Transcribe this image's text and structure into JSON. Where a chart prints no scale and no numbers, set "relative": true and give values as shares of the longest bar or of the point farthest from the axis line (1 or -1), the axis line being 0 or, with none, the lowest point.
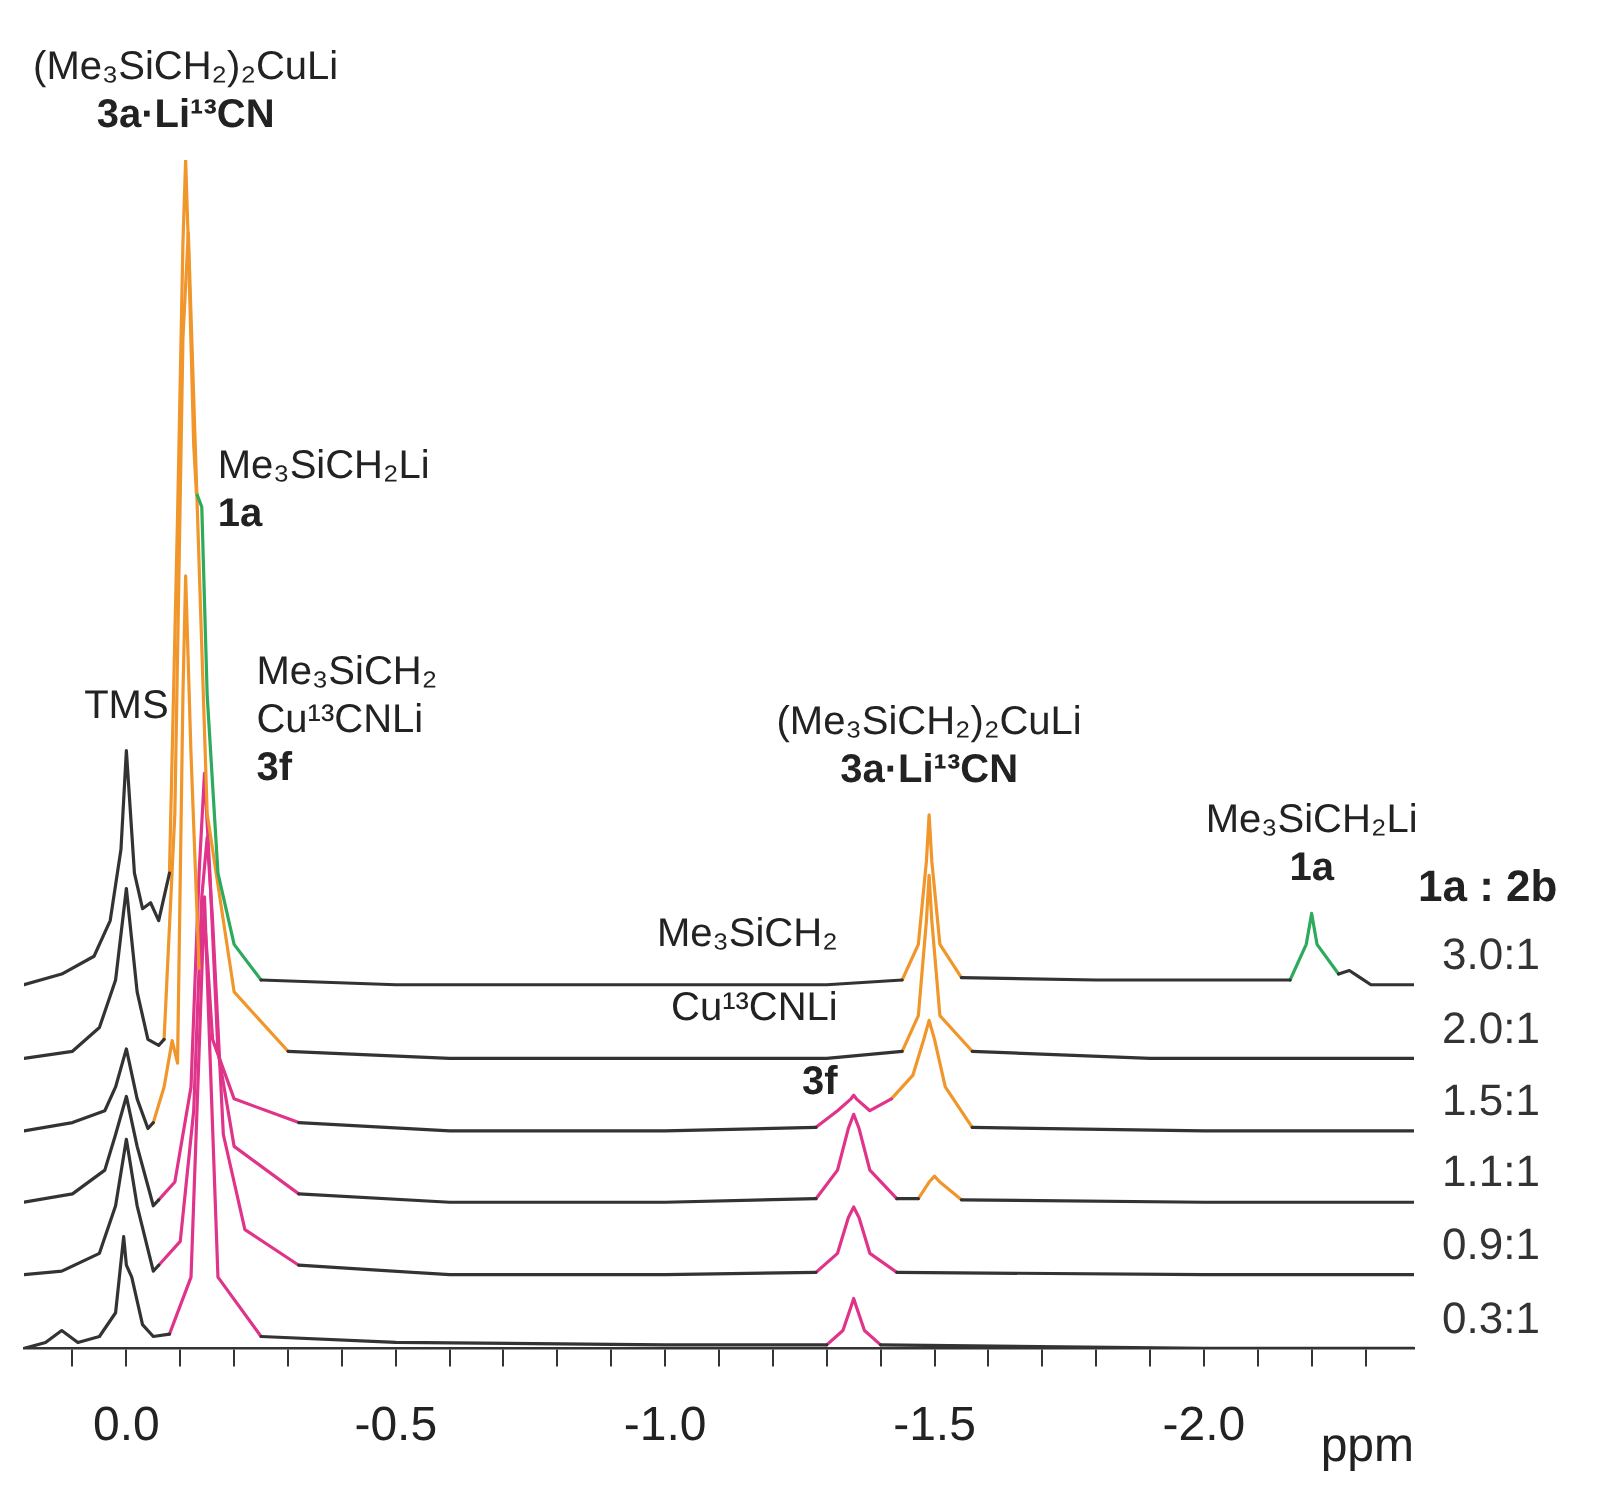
{
  "chart_data": {
    "type": "line",
    "xlabel": "ppm",
    "legend_title": "1a : 2b",
    "relative": true,
    "legend": false,
    "marker": "none",
    "line_style": "solid",
    "tick_labels": "x",
    "xlim": [
      0.19,
      -2.39
    ],
    "xticks": [
      {
        "value": 0.1,
        "label": null
      },
      {
        "value": 0,
        "label": "0.0"
      },
      {
        "value": -0.1,
        "label": null
      },
      {
        "value": -0.2,
        "label": null
      },
      {
        "value": -0.3,
        "label": null
      },
      {
        "value": -0.4,
        "label": null
      },
      {
        "value": -0.5,
        "label": "-0.5"
      },
      {
        "value": -0.6,
        "label": null
      },
      {
        "value": -0.7,
        "label": null
      },
      {
        "value": -0.8,
        "label": null
      },
      {
        "value": -0.9,
        "label": null
      },
      {
        "value": -1,
        "label": "-1.0"
      },
      {
        "value": -1.1,
        "label": null
      },
      {
        "value": -1.2,
        "label": null
      },
      {
        "value": -1.3,
        "label": null
      },
      {
        "value": -1.4,
        "label": null
      },
      {
        "value": -1.5,
        "label": "-1.5"
      },
      {
        "value": -1.6,
        "label": null
      },
      {
        "value": -1.7,
        "label": null
      },
      {
        "value": -1.8,
        "label": null
      },
      {
        "value": -1.9,
        "label": null
      },
      {
        "value": -2,
        "label": "-2.0"
      },
      {
        "value": -2.1,
        "label": null
      },
      {
        "value": -2.2,
        "label": null
      },
      {
        "value": -2.3,
        "label": null
      }
    ],
    "series": [
      {
        "name": "3.0:1",
        "color": "#333333",
        "x": [
          0.19,
          0.12,
          0.06,
          0.03,
          0.01,
          0.0,
          -0.015,
          -0.03,
          -0.045,
          -0.06,
          -0.08,
          -0.09,
          -0.25,
          -0.5,
          -1.0,
          -1.3,
          -1.44,
          -1.45,
          -1.55,
          -1.8,
          -2.1,
          -2.16,
          -2.17,
          -2.25,
          -2.27,
          -2.29,
          -2.31,
          -2.39
        ],
        "values": [
          0.306,
          0.315,
          0.33,
          0.36,
          0.42,
          0.503,
          0.4,
          0.37,
          0.375,
          0.36,
          0.4,
          null,
          0.31,
          0.306,
          0.306,
          0.306,
          0.31,
          null,
          0.312,
          0.31,
          0.31,
          0.31,
          null,
          0.315,
          0.318,
          0.312,
          0.306,
          0.306
        ]
      },
      {
        "color": "#f0962a",
        "x": [
          -0.08,
          -0.095,
          -0.105,
          -0.11,
          -0.115,
          -0.125,
          -0.13
        ],
        "values": [
          0.4,
          0.7,
          0.93,
          1.0,
          0.93,
          0.76,
          0.72
        ]
      },
      {
        "color": "#2eaa5c",
        "x": [
          -0.13,
          -0.14,
          -0.15,
          -0.17,
          -0.2,
          -0.25
        ],
        "values": [
          0.72,
          0.708,
          0.55,
          0.4,
          0.34,
          0.31
        ]
      },
      {
        "color": "#f0962a",
        "x": [
          -1.44,
          -1.47,
          -1.485,
          -1.49,
          -1.495,
          -1.51,
          -1.55
        ],
        "values": [
          0.31,
          0.34,
          0.41,
          0.449,
          0.41,
          0.34,
          0.312
        ]
      },
      {
        "color": "#2eaa5c",
        "x": [
          -2.16,
          -2.19,
          -2.2,
          -2.21,
          -2.25
        ],
        "values": [
          0.31,
          0.34,
          0.366,
          0.34,
          0.315
        ]
      },
      {
        "name": "2.0:1",
        "color": "#333333",
        "x": [
          0.19,
          0.1,
          0.05,
          0.02,
          0.0,
          -0.02,
          -0.04,
          -0.06,
          -0.07,
          -0.08,
          -0.3,
          -0.6,
          -1.0,
          -1.3,
          -1.44,
          -1.45,
          -1.57,
          -1.9,
          -2.39
        ],
        "values": [
          0.244,
          0.25,
          0.27,
          0.31,
          0.387,
          0.3,
          0.26,
          0.255,
          0.26,
          null,
          0.25,
          0.244,
          0.244,
          0.244,
          0.25,
          null,
          0.25,
          0.244,
          0.244
        ]
      },
      {
        "color": "#f0962a",
        "x": [
          -0.07,
          -0.09,
          -0.105,
          -0.115,
          -0.125,
          -0.15,
          -0.2,
          -0.3
        ],
        "values": [
          0.26,
          0.45,
          0.85,
          0.939,
          0.8,
          0.45,
          0.3,
          0.25
        ]
      },
      {
        "color": "#f0962a",
        "x": [
          -1.44,
          -1.47,
          -1.485,
          -1.49,
          -1.495,
          -1.51,
          -1.57
        ],
        "values": [
          0.25,
          0.28,
          0.36,
          0.398,
          0.36,
          0.28,
          0.25
        ]
      },
      {
        "name": "1.5:1",
        "color": "#333333",
        "x": [
          0.19,
          0.1,
          0.04,
          0.02,
          0.0,
          -0.02,
          -0.04,
          -0.05,
          -0.06,
          -0.32,
          -0.6,
          -1.0,
          -1.28,
          -1.29,
          -1.57,
          -2.0,
          -2.39
        ],
        "values": [
          0.183,
          0.19,
          0.2,
          0.22,
          0.252,
          0.21,
          0.185,
          0.19,
          null,
          0.19,
          0.183,
          0.183,
          0.186,
          null,
          0.186,
          0.183,
          0.183
        ]
      },
      {
        "color": "#f0962a",
        "x": [
          -0.05,
          -0.07,
          -0.085,
          -0.095,
          -0.105,
          -0.11,
          -0.12,
          -0.135
        ],
        "values": [
          0.19,
          0.22,
          0.259,
          0.24,
          0.55,
          0.65,
          0.5,
          0.32
        ]
      },
      {
        "color": "#e0338a",
        "x": [
          -0.135,
          -0.145,
          -0.15,
          -0.16,
          -0.2,
          -0.32
        ],
        "values": [
          0.32,
          0.361,
          0.33,
          0.26,
          0.21,
          0.19
        ]
      },
      {
        "color": "#e0338a",
        "x": [
          -1.28,
          -1.32,
          -1.345,
          -1.35,
          -1.355,
          -1.38,
          -1.42
        ],
        "values": [
          0.186,
          0.2,
          0.21,
          0.213,
          0.21,
          0.2,
          0.21
        ]
      },
      {
        "color": "#f0962a",
        "x": [
          -1.42,
          -1.46,
          -1.48,
          -1.49,
          -1.5,
          -1.52,
          -1.57
        ],
        "values": [
          0.21,
          0.23,
          0.26,
          0.276,
          0.26,
          0.22,
          0.186
        ]
      },
      {
        "name": "1.1:1",
        "color": "#333333",
        "x": [
          0.19,
          0.1,
          0.04,
          0.02,
          0.0,
          -0.02,
          -0.05,
          -0.06,
          -0.07,
          -0.32,
          -0.6,
          -1.0,
          -1.28,
          -1.29,
          -1.43,
          -1.47,
          -1.48,
          -1.55,
          -2.0,
          -2.39
        ],
        "values": [
          0.123,
          0.13,
          0.15,
          0.18,
          0.212,
          0.17,
          0.12,
          0.125,
          null,
          0.13,
          0.123,
          0.123,
          0.126,
          null,
          0.126,
          0.126,
          null,
          0.125,
          0.123,
          0.123
        ]
      },
      {
        "color": "#e0338a",
        "x": [
          -0.06,
          -0.09,
          -0.12,
          -0.135,
          -0.145,
          -0.155,
          -0.17,
          -0.2,
          -0.32
        ],
        "values": [
          0.125,
          0.14,
          0.22,
          0.4,
          0.484,
          0.4,
          0.25,
          0.17,
          0.13
        ]
      },
      {
        "color": "#e0338a",
        "x": [
          -1.28,
          -1.32,
          -1.34,
          -1.35,
          -1.36,
          -1.38,
          -1.43
        ],
        "values": [
          0.126,
          0.15,
          0.185,
          0.197,
          0.185,
          0.15,
          0.126
        ]
      },
      {
        "color": "#f0962a",
        "x": [
          -1.47,
          -1.49,
          -1.5,
          -1.51,
          -1.55
        ],
        "values": [
          0.126,
          0.14,
          0.145,
          0.14,
          0.125
        ]
      },
      {
        "name": "0.9:1",
        "color": "#333333",
        "x": [
          0.19,
          0.12,
          0.05,
          0.02,
          0.0,
          -0.02,
          -0.05,
          -0.06,
          -0.07,
          -0.32,
          -0.6,
          -1.0,
          -1.28,
          -1.29,
          -1.43,
          -2.0,
          -2.39
        ],
        "values": [
          0.062,
          0.065,
          0.08,
          0.12,
          0.176,
          0.12,
          0.065,
          0.07,
          null,
          0.07,
          0.062,
          0.062,
          0.064,
          null,
          0.064,
          0.062,
          0.062
        ]
      },
      {
        "color": "#e0338a",
        "x": [
          -0.06,
          -0.1,
          -0.125,
          -0.14,
          -0.15,
          -0.16,
          -0.18,
          -0.22,
          -0.32
        ],
        "values": [
          0.07,
          0.09,
          0.2,
          0.38,
          0.43,
          0.36,
          0.18,
          0.1,
          0.07
        ]
      },
      {
        "color": "#e0338a",
        "x": [
          -1.28,
          -1.32,
          -1.34,
          -1.35,
          -1.36,
          -1.38,
          -1.43
        ],
        "values": [
          0.064,
          0.08,
          0.11,
          0.119,
          0.11,
          0.08,
          0.064
        ]
      },
      {
        "name": "0.3:1",
        "color": "#333333",
        "x": [
          0.19,
          0.15,
          0.12,
          0.09,
          0.05,
          0.02,
          0.005,
          0.0,
          -0.01,
          -0.02,
          -0.03,
          -0.05,
          -0.08,
          -0.09,
          -0.25,
          -0.5,
          -1.0,
          -1.3,
          -1.31,
          -1.4,
          -2.0,
          -2.39
        ],
        "values": [
          0,
          0.005,
          0.015,
          0.005,
          0.01,
          0.03,
          0.094,
          0.07,
          0.06,
          0.04,
          0.02,
          0.01,
          0.012,
          null,
          0.01,
          0.005,
          0.003,
          0.003,
          null,
          0.003,
          0,
          0
        ]
      },
      {
        "color": "#e0338a",
        "x": [
          -0.08,
          -0.12,
          -0.135,
          -0.145,
          -0.155,
          -0.17,
          -0.25
        ],
        "values": [
          0.012,
          0.06,
          0.25,
          0.38,
          0.25,
          0.06,
          0.01
        ]
      },
      {
        "color": "#e0338a",
        "x": [
          -1.3,
          -1.33,
          -1.345,
          -1.35,
          -1.355,
          -1.37,
          -1.4
        ],
        "values": [
          0.003,
          0.015,
          0.035,
          0.042,
          0.035,
          0.015,
          0.003
        ]
      }
    ],
    "annotations": [
      {
        "text": "(Me₃SiCH₂)₂CuLi\n3a·Li¹³CN",
        "x": -0.11,
        "y": 1.0
      },
      {
        "text": "Me₃SiCH₂Li\n1a",
        "x": -0.14,
        "y": 0.708
      },
      {
        "text": "TMS",
        "x": 0.0,
        "y": 0.503
      },
      {
        "text": "Me₃SiCH₂\nCu¹³CNLi\n3f",
        "x": -0.145,
        "y": 0.484
      },
      {
        "text": "(Me₃SiCH₂)₂CuLi\n3a·Li¹³CN",
        "x": -1.49,
        "y": 0.449
      },
      {
        "text": "Me₃SiCH₂Li\n1a",
        "x": -2.2,
        "y": 0.366
      },
      {
        "text": "Me₃SiCH₂\nCu¹³CNLi\n3f",
        "x": -1.35,
        "y": 0.213
      }
    ]
  }
}
